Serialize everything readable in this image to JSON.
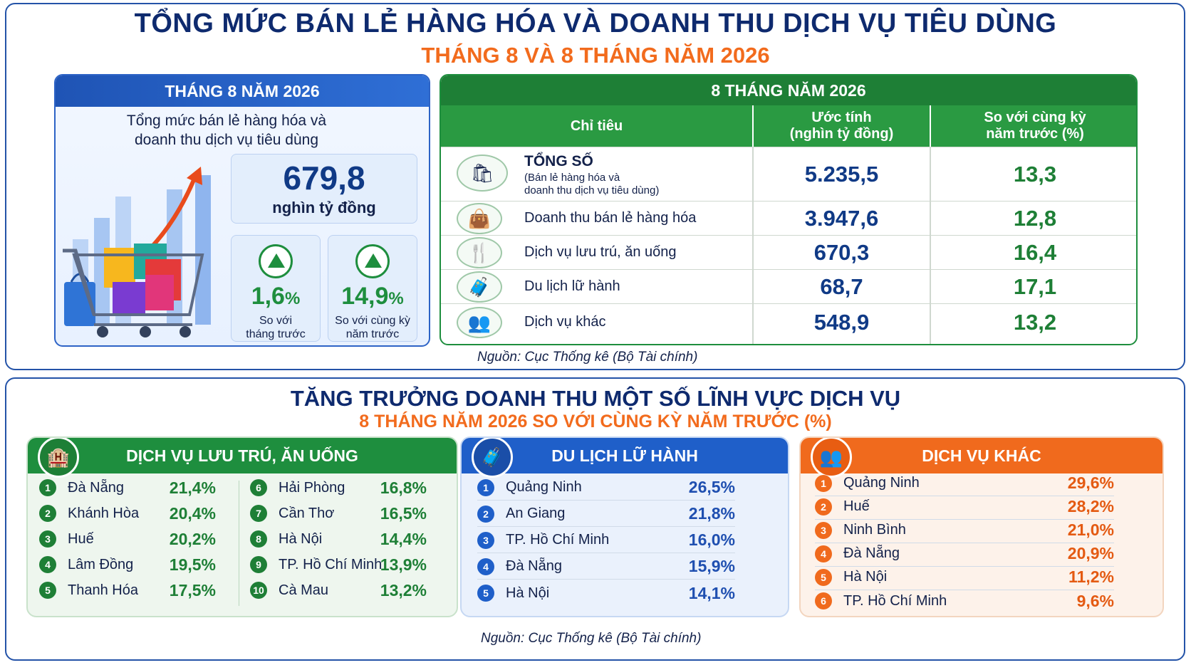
{
  "title": "TỔNG MỨC BÁN LẺ HÀNG HÓA VÀ DOANH THU DỊCH VỤ TIÊU DÙNG",
  "subtitle": "THÁNG 8 VÀ 8 THÁNG NĂM 2026",
  "month_card": {
    "header": "THÁNG 8 NĂM 2026",
    "description_line1": "Tổng mức bán lẻ hàng hóa và",
    "description_line2": "doanh thu dịch vụ tiêu dùng",
    "value": "679,8",
    "unit": "nghìn tỷ đồng",
    "stats": [
      {
        "value": "1,6",
        "suffix": "%",
        "label_line1": "So với",
        "label_line2": "tháng trước"
      },
      {
        "value": "14,9",
        "suffix": "%",
        "label_line1": "So với cùng kỳ",
        "label_line2": "năm trước"
      }
    ]
  },
  "year_card": {
    "header": "8 THÁNG NĂM 2026",
    "columns": {
      "indicator": "Chỉ tiêu",
      "estimate_line1": "Ước tính",
      "estimate_line2": "(nghìn tỷ đồng)",
      "compare_line1": "So với cùng kỳ",
      "compare_line2": "năm trước (%)"
    },
    "total": {
      "name": "TỔNG SỐ",
      "note_line1": "(Bán lẻ hàng hóa và",
      "note_line2": "doanh thu dịch vụ tiêu dùng)",
      "value": "5.235,5",
      "percent": "13,3",
      "icon": "shopping-bag-icon"
    },
    "rows": [
      {
        "name": "Doanh thu bán lẻ hàng hóa",
        "value": "3.947,6",
        "percent": "12,8",
        "icon": "shopping-bag-icon"
      },
      {
        "name": "Dịch vụ lưu trú, ăn uống",
        "value": "670,3",
        "percent": "16,4",
        "icon": "cutlery-icon"
      },
      {
        "name": "Du lịch lữ hành",
        "value": "68,7",
        "percent": "17,1",
        "icon": "luggage-icon"
      },
      {
        "name": "Dịch vụ khác",
        "value": "548,9",
        "percent": "13,2",
        "icon": "people-icon"
      }
    ]
  },
  "source": "Nguồn: Cục Thống kê (Bộ Tài chính)",
  "growth_section": {
    "title": "TĂNG TRƯỞNG DOANH THU MỘT SỐ LĨNH VỰC DỊCH VỤ",
    "subtitle": "8 THÁNG NĂM 2026 SO VỚI CÙNG KỲ NĂM TRƯỚC (%)",
    "accommodation": {
      "header": "DỊCH VỤ LƯU TRÚ, ĂN UỐNG",
      "icon": "hotel-icon",
      "items": [
        {
          "rank": "1",
          "name": "Đà Nẵng",
          "value": "21,4%"
        },
        {
          "rank": "2",
          "name": "Khánh Hòa",
          "value": "20,4%"
        },
        {
          "rank": "3",
          "name": "Huế",
          "value": "20,2%"
        },
        {
          "rank": "4",
          "name": "Lâm Đồng",
          "value": "19,5%"
        },
        {
          "rank": "5",
          "name": "Thanh Hóa",
          "value": "17,5%"
        },
        {
          "rank": "6",
          "name": "Hải Phòng",
          "value": "16,8%"
        },
        {
          "rank": "7",
          "name": "Cần Thơ",
          "value": "16,5%"
        },
        {
          "rank": "8",
          "name": "Hà Nội",
          "value": "14,4%"
        },
        {
          "rank": "9",
          "name": "TP. Hồ Chí Minh",
          "value": "13,9%"
        },
        {
          "rank": "10",
          "name": "Cà Mau",
          "value": "13,2%"
        }
      ]
    },
    "travel": {
      "header": "DU LỊCH LỮ HÀNH",
      "icon": "luggage-icon",
      "items": [
        {
          "rank": "1",
          "name": "Quảng Ninh",
          "value": "26,5%"
        },
        {
          "rank": "2",
          "name": "An Giang",
          "value": "21,8%"
        },
        {
          "rank": "3",
          "name": "TP. Hồ Chí Minh",
          "value": "16,0%"
        },
        {
          "rank": "4",
          "name": "Đà Nẵng",
          "value": "15,9%"
        },
        {
          "rank": "5",
          "name": "Hà Nội",
          "value": "14,1%"
        }
      ]
    },
    "other": {
      "header": "DỊCH VỤ KHÁC",
      "icon": "people-icon",
      "items": [
        {
          "rank": "1",
          "name": "Quảng Ninh",
          "value": "29,6%"
        },
        {
          "rank": "2",
          "name": "Huế",
          "value": "28,2%"
        },
        {
          "rank": "3",
          "name": "Ninh Bình",
          "value": "21,0%"
        },
        {
          "rank": "4",
          "name": "Đà Nẵng",
          "value": "20,9%"
        },
        {
          "rank": "5",
          "name": "Hà Nội",
          "value": "11,2%"
        },
        {
          "rank": "6",
          "name": "TP. Hồ Chí Minh",
          "value": "9,6%"
        }
      ]
    }
  },
  "colors": {
    "navy": "#0e2a6e",
    "orange": "#f26b1d",
    "green": "#1e8e3e",
    "blue": "#1f5fc9"
  }
}
